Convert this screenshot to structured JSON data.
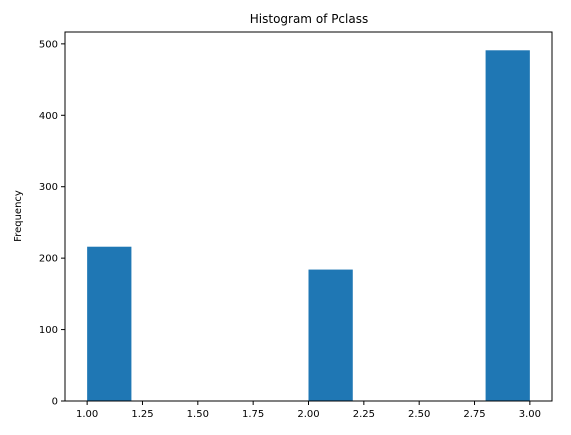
{
  "chart_data": {
    "type": "bar",
    "title": "Histogram of Pclass",
    "xlabel": "",
    "ylabel": "Frequency",
    "xlim": [
      0.9,
      3.1
    ],
    "ylim": [
      0,
      516.6
    ],
    "bins": [
      {
        "x0": 1.0,
        "x1": 1.2,
        "value": 216
      },
      {
        "x0": 1.2,
        "x1": 1.4,
        "value": 0
      },
      {
        "x0": 1.4,
        "x1": 1.6,
        "value": 0
      },
      {
        "x0": 1.6,
        "x1": 1.8,
        "value": 0
      },
      {
        "x0": 1.8,
        "x1": 2.0,
        "value": 0
      },
      {
        "x0": 2.0,
        "x1": 2.2,
        "value": 184
      },
      {
        "x0": 2.2,
        "x1": 2.4,
        "value": 0
      },
      {
        "x0": 2.4,
        "x1": 2.6,
        "value": 0
      },
      {
        "x0": 2.6,
        "x1": 2.8,
        "value": 0
      },
      {
        "x0": 2.8,
        "x1": 3.0,
        "value": 491
      }
    ],
    "xticks": [
      1.0,
      1.25,
      1.5,
      1.75,
      2.0,
      2.25,
      2.5,
      2.75,
      3.0
    ],
    "xtick_labels": [
      "1.00",
      "1.25",
      "1.50",
      "1.75",
      "2.00",
      "2.25",
      "2.50",
      "2.75",
      "3.00"
    ],
    "yticks": [
      0,
      100,
      200,
      300,
      400,
      500
    ],
    "ytick_labels": [
      "0",
      "100",
      "200",
      "300",
      "400",
      "500"
    ],
    "bar_color": "#1f77b4",
    "grid": false,
    "legend": "none"
  }
}
